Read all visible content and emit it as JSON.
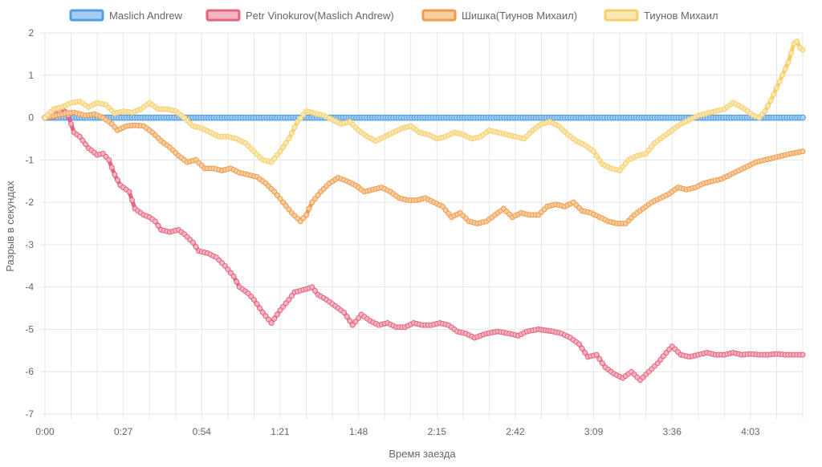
{
  "chart_data": {
    "type": "line",
    "xlabel": "Время заезда",
    "ylabel": "Разрыв в секундах",
    "ylim": [
      -7,
      2
    ],
    "xlim": [
      0,
      261
    ],
    "y_ticks": [
      "2",
      "1",
      "0",
      "-1",
      "-2",
      "-3",
      "-4",
      "-5",
      "-6",
      "-7"
    ],
    "x_ticks": [
      {
        "x": 0,
        "label": "0:00"
      },
      {
        "x": 27,
        "label": "0:27"
      },
      {
        "x": 54,
        "label": "0:54"
      },
      {
        "x": 81,
        "label": "1:21"
      },
      {
        "x": 108,
        "label": "1:48"
      },
      {
        "x": 135,
        "label": "2:15"
      },
      {
        "x": 162,
        "label": "2:42"
      },
      {
        "x": 189,
        "label": "3:09"
      },
      {
        "x": 216,
        "label": "3:36"
      },
      {
        "x": 243,
        "label": "4:03"
      }
    ],
    "grid": true,
    "legend_position": "top",
    "series": [
      {
        "name": "Maslich Andrew",
        "color": "#4e9ee6",
        "fill": "#a9cdf1",
        "points": [
          [
            0,
            0
          ],
          [
            261,
            0
          ]
        ]
      },
      {
        "name": "Petr Vinokurov(Maslich Andrew)",
        "color": "#e5637e",
        "fill": "#f5b5c2",
        "points": [
          [
            0,
            0
          ],
          [
            3,
            0.02
          ],
          [
            6,
            0.22
          ],
          [
            8,
            0.05
          ],
          [
            10,
            -0.35
          ],
          [
            12,
            -0.45
          ],
          [
            15,
            -0.72
          ],
          [
            18,
            -0.88
          ],
          [
            20,
            -0.85
          ],
          [
            22,
            -1.0
          ],
          [
            24,
            -1.35
          ],
          [
            26,
            -1.6
          ],
          [
            29,
            -1.75
          ],
          [
            31,
            -2.15
          ],
          [
            34,
            -2.3
          ],
          [
            36,
            -2.35
          ],
          [
            38,
            -2.45
          ],
          [
            40,
            -2.65
          ],
          [
            43,
            -2.7
          ],
          [
            46,
            -2.65
          ],
          [
            48,
            -2.75
          ],
          [
            51,
            -2.95
          ],
          [
            53,
            -3.15
          ],
          [
            56,
            -3.2
          ],
          [
            59,
            -3.3
          ],
          [
            62,
            -3.5
          ],
          [
            65,
            -3.75
          ],
          [
            67,
            -4.0
          ],
          [
            70,
            -4.15
          ],
          [
            72,
            -4.3
          ],
          [
            75,
            -4.6
          ],
          [
            78,
            -4.85
          ],
          [
            81,
            -4.55
          ],
          [
            84,
            -4.3
          ],
          [
            86,
            -4.12
          ],
          [
            90,
            -4.05
          ],
          [
            92,
            -4.0
          ],
          [
            94,
            -4.18
          ],
          [
            97,
            -4.3
          ],
          [
            100,
            -4.45
          ],
          [
            103,
            -4.6
          ],
          [
            106,
            -4.9
          ],
          [
            109,
            -4.65
          ],
          [
            112,
            -4.8
          ],
          [
            115,
            -4.9
          ],
          [
            118,
            -4.85
          ],
          [
            121,
            -4.95
          ],
          [
            124,
            -4.95
          ],
          [
            127,
            -4.85
          ],
          [
            130,
            -4.9
          ],
          [
            133,
            -4.9
          ],
          [
            136,
            -4.85
          ],
          [
            139,
            -4.9
          ],
          [
            142,
            -5.05
          ],
          [
            145,
            -5.1
          ],
          [
            148,
            -5.2
          ],
          [
            152,
            -5.1
          ],
          [
            156,
            -5.05
          ],
          [
            160,
            -5.1
          ],
          [
            163,
            -5.15
          ],
          [
            166,
            -5.05
          ],
          [
            170,
            -5.0
          ],
          [
            175,
            -5.05
          ],
          [
            178,
            -5.1
          ],
          [
            181,
            -5.2
          ],
          [
            184,
            -5.35
          ],
          [
            187,
            -5.65
          ],
          [
            190,
            -5.6
          ],
          [
            193,
            -5.9
          ],
          [
            196,
            -6.05
          ],
          [
            199,
            -6.15
          ],
          [
            202,
            -6.0
          ],
          [
            205,
            -6.2
          ],
          [
            208,
            -6.0
          ],
          [
            211,
            -5.8
          ],
          [
            214,
            -5.55
          ],
          [
            216,
            -5.4
          ],
          [
            219,
            -5.6
          ],
          [
            222,
            -5.65
          ],
          [
            225,
            -5.6
          ],
          [
            228,
            -5.55
          ],
          [
            231,
            -5.6
          ],
          [
            234,
            -5.6
          ],
          [
            237,
            -5.55
          ],
          [
            240,
            -5.6
          ],
          [
            243,
            -5.58
          ],
          [
            246,
            -5.6
          ],
          [
            249,
            -5.6
          ],
          [
            252,
            -5.58
          ],
          [
            255,
            -5.6
          ],
          [
            258,
            -5.6
          ],
          [
            261,
            -5.6
          ]
        ]
      },
      {
        "name": "Шишка(Тиунов Михаил)",
        "color": "#f19a4a",
        "fill": "#f8cfa3",
        "points": [
          [
            0,
            0
          ],
          [
            4,
            0.05
          ],
          [
            7,
            0.1
          ],
          [
            10,
            0.12
          ],
          [
            14,
            0.05
          ],
          [
            17,
            0.08
          ],
          [
            20,
            0.0
          ],
          [
            23,
            -0.15
          ],
          [
            25,
            -0.3
          ],
          [
            28,
            -0.2
          ],
          [
            31,
            -0.18
          ],
          [
            34,
            -0.2
          ],
          [
            37,
            -0.35
          ],
          [
            40,
            -0.55
          ],
          [
            43,
            -0.7
          ],
          [
            46,
            -0.9
          ],
          [
            49,
            -1.05
          ],
          [
            52,
            -1.0
          ],
          [
            55,
            -1.2
          ],
          [
            58,
            -1.2
          ],
          [
            61,
            -1.25
          ],
          [
            64,
            -1.2
          ],
          [
            67,
            -1.3
          ],
          [
            70,
            -1.35
          ],
          [
            73,
            -1.4
          ],
          [
            76,
            -1.55
          ],
          [
            79,
            -1.75
          ],
          [
            82,
            -2.0
          ],
          [
            85,
            -2.25
          ],
          [
            88,
            -2.45
          ],
          [
            90,
            -2.3
          ],
          [
            92,
            -2.0
          ],
          [
            95,
            -1.75
          ],
          [
            98,
            -1.55
          ],
          [
            101,
            -1.42
          ],
          [
            104,
            -1.5
          ],
          [
            107,
            -1.6
          ],
          [
            110,
            -1.75
          ],
          [
            113,
            -1.7
          ],
          [
            116,
            -1.65
          ],
          [
            119,
            -1.75
          ],
          [
            122,
            -1.9
          ],
          [
            125,
            -1.95
          ],
          [
            128,
            -1.95
          ],
          [
            131,
            -1.9
          ],
          [
            134,
            -2.0
          ],
          [
            137,
            -2.1
          ],
          [
            140,
            -2.35
          ],
          [
            143,
            -2.25
          ],
          [
            146,
            -2.45
          ],
          [
            149,
            -2.5
          ],
          [
            152,
            -2.45
          ],
          [
            155,
            -2.3
          ],
          [
            158,
            -2.15
          ],
          [
            161,
            -2.35
          ],
          [
            164,
            -2.25
          ],
          [
            167,
            -2.3
          ],
          [
            170,
            -2.3
          ],
          [
            173,
            -2.1
          ],
          [
            176,
            -2.05
          ],
          [
            179,
            -2.1
          ],
          [
            182,
            -2.0
          ],
          [
            185,
            -2.2
          ],
          [
            188,
            -2.25
          ],
          [
            191,
            -2.35
          ],
          [
            194,
            -2.45
          ],
          [
            197,
            -2.5
          ],
          [
            200,
            -2.5
          ],
          [
            203,
            -2.3
          ],
          [
            206,
            -2.15
          ],
          [
            209,
            -2.0
          ],
          [
            212,
            -1.9
          ],
          [
            215,
            -1.8
          ],
          [
            218,
            -1.65
          ],
          [
            221,
            -1.7
          ],
          [
            224,
            -1.65
          ],
          [
            227,
            -1.55
          ],
          [
            230,
            -1.5
          ],
          [
            233,
            -1.45
          ],
          [
            236,
            -1.35
          ],
          [
            239,
            -1.25
          ],
          [
            242,
            -1.15
          ],
          [
            245,
            -1.05
          ],
          [
            248,
            -1.0
          ],
          [
            251,
            -0.95
          ],
          [
            254,
            -0.9
          ],
          [
            257,
            -0.85
          ],
          [
            261,
            -0.8
          ]
        ]
      },
      {
        "name": "Тиунов Михаил",
        "color": "#f6cf6a",
        "fill": "#fbe7b4",
        "points": [
          [
            0,
            0
          ],
          [
            3,
            0.2
          ],
          [
            6,
            0.25
          ],
          [
            9,
            0.35
          ],
          [
            12,
            0.38
          ],
          [
            15,
            0.25
          ],
          [
            18,
            0.35
          ],
          [
            21,
            0.3
          ],
          [
            24,
            0.1
          ],
          [
            27,
            0.15
          ],
          [
            30,
            0.12
          ],
          [
            33,
            0.2
          ],
          [
            36,
            0.35
          ],
          [
            39,
            0.2
          ],
          [
            42,
            0.2
          ],
          [
            45,
            0.15
          ],
          [
            48,
            0.0
          ],
          [
            51,
            -0.2
          ],
          [
            54,
            -0.25
          ],
          [
            57,
            -0.35
          ],
          [
            60,
            -0.45
          ],
          [
            63,
            -0.45
          ],
          [
            66,
            -0.5
          ],
          [
            69,
            -0.6
          ],
          [
            72,
            -0.8
          ],
          [
            75,
            -1.0
          ],
          [
            78,
            -1.05
          ],
          [
            81,
            -0.8
          ],
          [
            84,
            -0.5
          ],
          [
            87,
            -0.1
          ],
          [
            90,
            0.15
          ],
          [
            93,
            0.1
          ],
          [
            96,
            0.05
          ],
          [
            99,
            -0.05
          ],
          [
            102,
            -0.15
          ],
          [
            105,
            -0.1
          ],
          [
            108,
            -0.3
          ],
          [
            111,
            -0.45
          ],
          [
            114,
            -0.55
          ],
          [
            117,
            -0.45
          ],
          [
            120,
            -0.35
          ],
          [
            123,
            -0.25
          ],
          [
            126,
            -0.2
          ],
          [
            129,
            -0.35
          ],
          [
            132,
            -0.4
          ],
          [
            135,
            -0.5
          ],
          [
            138,
            -0.45
          ],
          [
            141,
            -0.35
          ],
          [
            144,
            -0.4
          ],
          [
            147,
            -0.5
          ],
          [
            150,
            -0.45
          ],
          [
            153,
            -0.3
          ],
          [
            156,
            -0.35
          ],
          [
            159,
            -0.4
          ],
          [
            162,
            -0.45
          ],
          [
            165,
            -0.5
          ],
          [
            168,
            -0.3
          ],
          [
            171,
            -0.15
          ],
          [
            174,
            -0.1
          ],
          [
            177,
            -0.2
          ],
          [
            180,
            -0.4
          ],
          [
            183,
            -0.55
          ],
          [
            186,
            -0.65
          ],
          [
            189,
            -0.8
          ],
          [
            192,
            -1.1
          ],
          [
            195,
            -1.2
          ],
          [
            198,
            -1.25
          ],
          [
            201,
            -1.0
          ],
          [
            204,
            -0.9
          ],
          [
            207,
            -0.85
          ],
          [
            210,
            -0.6
          ],
          [
            213,
            -0.45
          ],
          [
            216,
            -0.3
          ],
          [
            219,
            -0.15
          ],
          [
            222,
            -0.05
          ],
          [
            225,
            0.05
          ],
          [
            228,
            0.1
          ],
          [
            231,
            0.15
          ],
          [
            234,
            0.2
          ],
          [
            237,
            0.35
          ],
          [
            240,
            0.25
          ],
          [
            242,
            0.15
          ],
          [
            244,
            0.05
          ],
          [
            246,
            0.0
          ],
          [
            248,
            0.15
          ],
          [
            250,
            0.4
          ],
          [
            252,
            0.7
          ],
          [
            254,
            1.0
          ],
          [
            256,
            1.3
          ],
          [
            258,
            1.75
          ],
          [
            259,
            1.8
          ],
          [
            260,
            1.65
          ],
          [
            261,
            1.6
          ]
        ]
      }
    ]
  }
}
